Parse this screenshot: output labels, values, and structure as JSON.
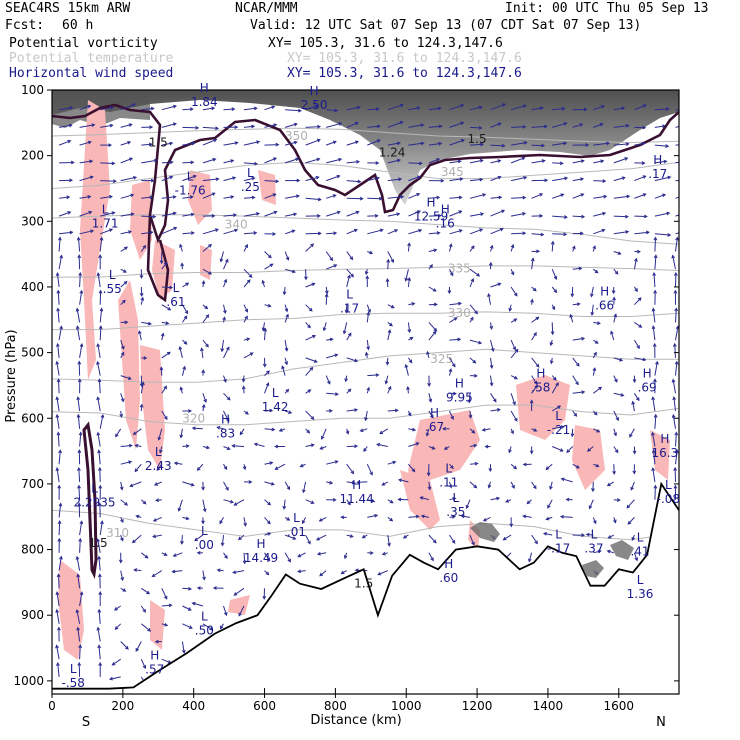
{
  "header": {
    "model": "SEAC4RS 15km ARW",
    "center": "NCAR/MMM",
    "init": "Init: 00 UTC Thu 05 Sep 13",
    "fcst_label": "Fcst:",
    "fcst_value": "60 h",
    "valid": "Valid: 12 UTC Sat 07 Sep 13 (07 CDT Sat 07 Sep 13)",
    "fields": [
      {
        "name": "Potential vorticity",
        "color": "#000000",
        "xy": "XY= 105.3, 31.6 to 124.3,147.6"
      },
      {
        "name": "Potential temperature",
        "color": "#c8c8c8",
        "xy": "XY= 105.3, 31.6 to 124.3,147.6"
      },
      {
        "name": "Horizontal wind speed",
        "color": "#1a1a8c",
        "xy": "XY= 105.3, 31.6 to 124.3,147.6"
      }
    ]
  },
  "chart_data": {
    "type": "cross-section",
    "xlabel": "Distance (km)",
    "ylabel": "Pressure (hPa)",
    "xlim": [
      0,
      1770
    ],
    "ylim": [
      1020,
      100
    ],
    "x_ticks": [
      0,
      200,
      400,
      600,
      800,
      1000,
      1200,
      1400,
      1600
    ],
    "y_ticks": [
      100,
      200,
      300,
      400,
      500,
      600,
      700,
      800,
      900,
      1000
    ],
    "endpoint_labels": {
      "left": "S",
      "right": "N"
    },
    "theta_contours": [
      {
        "label": "310",
        "p": [
          740,
          745,
          760,
          770,
          780,
          770,
          770,
          780,
          765,
          760,
          765,
          780,
          785,
          775
        ],
        "label_x": 185,
        "label_p": 775
      },
      {
        "label": "320",
        "p": [
          590,
          592,
          605,
          610,
          610,
          605,
          600,
          600,
          590,
          580,
          580,
          590,
          595,
          585
        ],
        "label_x": 400,
        "label_p": 600
      },
      {
        "label": "325",
        "p": [
          540,
          542,
          545,
          545,
          540,
          525,
          515,
          505,
          500,
          495,
          500,
          505,
          510,
          510
        ],
        "label_x": 1100,
        "label_p": 510
      },
      {
        "label": "330",
        "p": [
          465,
          465,
          460,
          455,
          450,
          448,
          442,
          440,
          440,
          438,
          440,
          445,
          445,
          440
        ],
        "label_x": 1150,
        "label_p": 440
      },
      {
        "label": "335",
        "p": [
          385,
          385,
          380,
          378,
          378,
          375,
          373,
          372,
          370,
          368,
          368,
          370,
          372,
          375
        ],
        "label_x": 1150,
        "label_p": 372
      },
      {
        "label": "340",
        "p": [
          295,
          292,
          290,
          290,
          292,
          295,
          298,
          300,
          305,
          310,
          312,
          320,
          330,
          335
        ],
        "label_x": 520,
        "label_p": 305
      },
      {
        "label": "345",
        "p": [
          250,
          245,
          235,
          225,
          215,
          210,
          215,
          225,
          235,
          235,
          230,
          225,
          220,
          210
        ],
        "label_x": 1130,
        "label_p": 225
      },
      {
        "label": "350",
        "p": [
          170,
          168,
          165,
          162,
          160,
          158,
          160,
          165,
          170,
          172,
          175,
          178,
          180,
          178
        ],
        "label_x": 690,
        "label_p": 170
      }
    ],
    "pv_labels": [
      {
        "text": "1.5",
        "x": 300,
        "p": 180
      },
      {
        "text": "1.5",
        "x": 1200,
        "p": 175
      },
      {
        "text": "1.24",
        "x": 960,
        "p": 195
      },
      {
        "text": "1.5",
        "x": 130,
        "p": 790
      },
      {
        "text": "1.5",
        "x": 880,
        "p": 852
      }
    ],
    "extrema": [
      {
        "type": "H",
        "value": "1.84",
        "x": 430,
        "p": 115
      },
      {
        "type": "L",
        "value": "-1.76",
        "x": 390,
        "p": 250
      },
      {
        "type": "L",
        "value": ".25",
        "x": 560,
        "p": 245
      },
      {
        "type": "H",
        "value": "2.50",
        "x": 740,
        "p": 120
      },
      {
        "type": "H",
        "value": "12.59",
        "x": 1070,
        "p": 290
      },
      {
        "type": "H",
        "value": ".16",
        "x": 1110,
        "p": 300
      },
      {
        "type": "H",
        "value": ".17",
        "x": 1710,
        "p": 225
      },
      {
        "type": "L",
        "value": "1.71",
        "x": 150,
        "p": 300
      },
      {
        "type": "L",
        "value": ".55",
        "x": 170,
        "p": 400
      },
      {
        "type": "L",
        "value": ".61",
        "x": 350,
        "p": 420
      },
      {
        "type": "L",
        "value": ".17",
        "x": 840,
        "p": 430
      },
      {
        "type": "H",
        "value": ".66",
        "x": 1560,
        "p": 425
      },
      {
        "type": "H",
        "value": "9.95",
        "x": 1150,
        "p": 565
      },
      {
        "type": "H",
        "value": ".58",
        "x": 1380,
        "p": 550
      },
      {
        "type": "H",
        "value": ".69",
        "x": 1680,
        "p": 550
      },
      {
        "type": "H",
        "value": ".83",
        "x": 490,
        "p": 620
      },
      {
        "type": "L",
        "value": "1.42",
        "x": 630,
        "p": 580
      },
      {
        "type": "H",
        "value": ".67",
        "x": 1080,
        "p": 610
      },
      {
        "type": "L",
        "value": "-.21",
        "x": 1430,
        "p": 615
      },
      {
        "type": "H",
        "value": "16.3",
        "x": 1730,
        "p": 650
      },
      {
        "type": "L",
        "value": "2.43",
        "x": 300,
        "p": 670
      },
      {
        "type": "L",
        "value": ".11",
        "x": 1120,
        "p": 695
      },
      {
        "type": "H",
        "value": "11.44",
        "x": 860,
        "p": 720
      },
      {
        "type": "L",
        "value": ".35",
        "x": 1140,
        "p": 740
      },
      {
        "type": "L",
        "value": "-.08",
        "x": 1740,
        "p": 720
      },
      {
        "type": "L",
        "value": "2.2935",
        "x": 120,
        "p": 725
      },
      {
        "type": "L",
        "value": ".01",
        "x": 690,
        "p": 770
      },
      {
        "type": "L",
        "value": ".00",
        "x": 430,
        "p": 790
      },
      {
        "type": "H",
        "value": "14.49",
        "x": 590,
        "p": 810
      },
      {
        "type": "L",
        "value": "-.17",
        "x": 1430,
        "p": 795
      },
      {
        "type": "L",
        "value": ".37",
        "x": 1530,
        "p": 795
      },
      {
        "type": "L",
        "value": ".41",
        "x": 1660,
        "p": 800
      },
      {
        "type": "L",
        "value": ".50",
        "x": 430,
        "p": 920
      },
      {
        "type": "H",
        "value": ".57",
        "x": 290,
        "p": 980
      },
      {
        "type": "L",
        "value": "-.58",
        "x": 60,
        "p": 1000
      },
      {
        "type": "L",
        "value": "1.36",
        "x": 1660,
        "p": 865
      },
      {
        "type": "H",
        "value": ".60",
        "x": 1120,
        "p": 840
      }
    ],
    "terrain_pressure": [
      [
        0,
        1012
      ],
      [
        160,
        1012
      ],
      [
        230,
        1010
      ],
      [
        300,
        985
      ],
      [
        380,
        958
      ],
      [
        460,
        928
      ],
      [
        520,
        912
      ],
      [
        580,
        900
      ],
      [
        620,
        870
      ],
      [
        660,
        838
      ],
      [
        700,
        852
      ],
      [
        760,
        860
      ],
      [
        820,
        845
      ],
      [
        880,
        830
      ],
      [
        920,
        900
      ],
      [
        960,
        840
      ],
      [
        1010,
        808
      ],
      [
        1050,
        820
      ],
      [
        1090,
        830
      ],
      [
        1140,
        800
      ],
      [
        1200,
        795
      ],
      [
        1260,
        800
      ],
      [
        1320,
        830
      ],
      [
        1360,
        820
      ],
      [
        1400,
        795
      ],
      [
        1440,
        805
      ],
      [
        1480,
        810
      ],
      [
        1520,
        855
      ],
      [
        1560,
        855
      ],
      [
        1600,
        830
      ],
      [
        1640,
        835
      ],
      [
        1680,
        808
      ],
      [
        1720,
        700
      ],
      [
        1770,
        740
      ]
    ]
  }
}
